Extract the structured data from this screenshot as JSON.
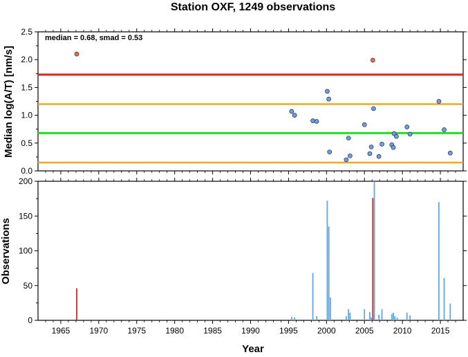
{
  "chart_data": [
    {
      "type": "scatter",
      "title": "Station OXF, 1249 observations",
      "ylabel": "Median log(A/T) [nm/s]",
      "annotation": "median = 0.68, smad = 0.53",
      "xlim": [
        1962,
        2018
      ],
      "ylim": [
        0,
        2.5
      ],
      "yticks": [
        "0.0",
        "0.5",
        "1.0",
        "1.5",
        "2.0",
        "2.5"
      ],
      "grid": false,
      "hlines": [
        {
          "y": 1.73,
          "color": "#e0201b"
        },
        {
          "y": 1.2,
          "color": "#f2a81d"
        },
        {
          "y": 0.68,
          "color": "#1ee01e"
        },
        {
          "y": 0.15,
          "color": "#f2a81d"
        }
      ],
      "series": [
        {
          "color": "#f26b5b",
          "points": [
            [
              1967.1,
              2.1
            ],
            [
              2006.1,
              1.99
            ]
          ]
        },
        {
          "color": "#6a9ff0",
          "points": [
            [
              1995.4,
              1.07
            ],
            [
              1995.8,
              1.0
            ],
            [
              1998.2,
              0.9
            ],
            [
              1998.7,
              0.89
            ],
            [
              2000.1,
              1.43
            ],
            [
              2000.3,
              1.29
            ],
            [
              2000.4,
              0.34
            ],
            [
              2002.6,
              0.2
            ],
            [
              2002.9,
              0.59
            ],
            [
              2003.1,
              0.27
            ],
            [
              2005.0,
              0.83
            ],
            [
              2005.7,
              0.31
            ],
            [
              2005.9,
              0.43
            ],
            [
              2006.2,
              1.12
            ],
            [
              2006.9,
              0.26
            ],
            [
              2007.3,
              0.48
            ],
            [
              2008.6,
              0.47
            ],
            [
              2008.8,
              0.42
            ],
            [
              2008.9,
              0.67
            ],
            [
              2009.2,
              0.62
            ],
            [
              2010.6,
              0.79
            ],
            [
              2011.0,
              0.66
            ],
            [
              2014.8,
              1.25
            ],
            [
              2015.5,
              0.74
            ],
            [
              2016.3,
              0.32
            ]
          ]
        }
      ]
    },
    {
      "type": "bar",
      "xlabel": "Year",
      "ylabel": "Observations",
      "xlim": [
        1962,
        2018
      ],
      "ylim": [
        0,
        200
      ],
      "xticks": [
        "1965",
        "1970",
        "1975",
        "1980",
        "1985",
        "1990",
        "1995",
        "2000",
        "2005",
        "2010",
        "2015"
      ],
      "yticks": [
        "0",
        "50",
        "100",
        "150",
        "200"
      ],
      "grid": false,
      "series": [
        {
          "color": "#e0201b",
          "x": [
            1967.1,
            2006.1
          ],
          "values": [
            46,
            176
          ]
        },
        {
          "color": "#5aa8e8",
          "x": [
            1995.4,
            1995.8,
            1998.2,
            1998.7,
            2000.1,
            2000.3,
            2000.5,
            2002.6,
            2002.9,
            2003.1,
            2005.0,
            2005.7,
            2005.9,
            2006.3,
            2006.9,
            2007.3,
            2008.6,
            2008.8,
            2009.0,
            2009.3,
            2010.6,
            2011.0,
            2014.8,
            2015.5,
            2016.3
          ],
          "values": [
            5,
            4,
            68,
            6,
            172,
            135,
            33,
            6,
            16,
            11,
            16,
            12,
            4,
            200,
            8,
            16,
            9,
            11,
            6,
            4,
            11,
            7,
            170,
            61,
            24
          ]
        }
      ]
    }
  ]
}
